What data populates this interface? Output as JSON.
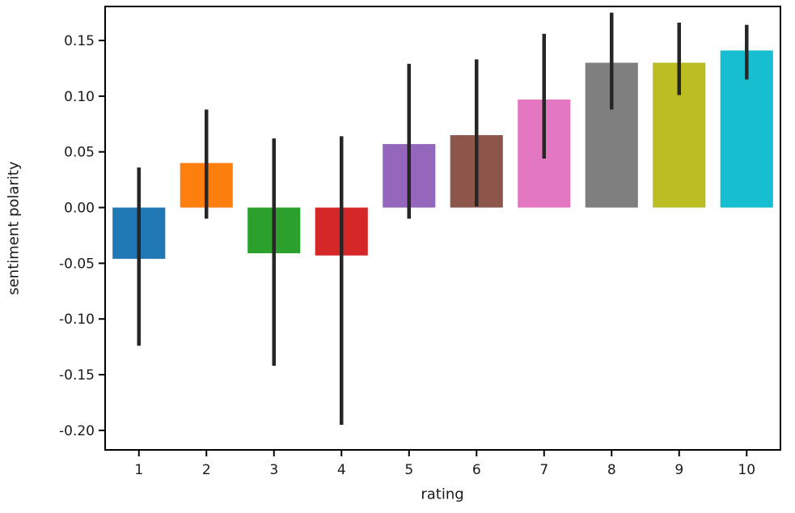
{
  "chart_data": {
    "type": "bar",
    "title": "",
    "xlabel": "rating",
    "ylabel": "sentiment polarity",
    "categories": [
      "1",
      "2",
      "3",
      "4",
      "5",
      "6",
      "7",
      "8",
      "9",
      "10"
    ],
    "values": [
      -0.046,
      0.04,
      -0.041,
      -0.043,
      0.057,
      0.065,
      0.097,
      0.13,
      0.13,
      0.141
    ],
    "error_low": [
      -0.124,
      -0.01,
      -0.142,
      -0.195,
      -0.01,
      0.001,
      0.044,
      0.088,
      0.101,
      0.115
    ],
    "error_high": [
      0.036,
      0.088,
      0.062,
      0.064,
      0.129,
      0.133,
      0.156,
      0.175,
      0.166,
      0.164
    ],
    "bar_colors": [
      "#1f77b4",
      "#ff7f0e",
      "#2ca02c",
      "#d62728",
      "#9467bd",
      "#8c564b",
      "#e377c2",
      "#7f7f7f",
      "#bcbd22",
      "#17becf"
    ],
    "error_color": "#262626",
    "frame_color": "#000000",
    "ylim": [
      -0.2175,
      0.1805
    ],
    "yticks": [
      0.15,
      0.1,
      0.05,
      0.0,
      -0.05,
      -0.1,
      -0.15,
      -0.2
    ],
    "ytick_labels": [
      "0.15",
      "0.10",
      "0.05",
      "0.00",
      "-0.05",
      "-0.10",
      "-0.15",
      "-0.20"
    ],
    "grid": false,
    "legend": false
  }
}
